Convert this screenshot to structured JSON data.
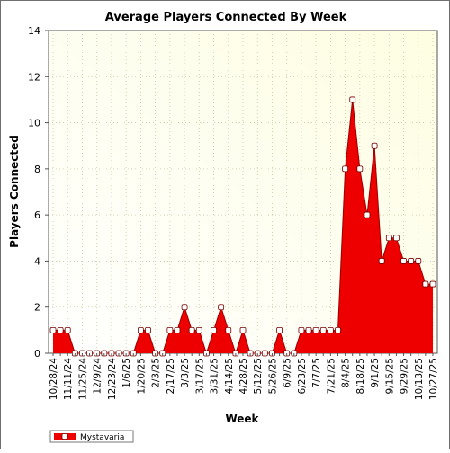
{
  "chart_data": {
    "type": "area",
    "title": "Average Players Connected By Week",
    "xlabel": "Week",
    "ylabel": "Players Connected",
    "ylim": [
      0,
      14
    ],
    "yticks": [
      0,
      2,
      4,
      6,
      8,
      10,
      12,
      14
    ],
    "grid": true,
    "legend_position": "bottom-left",
    "colors": {
      "fill": "#ee0000",
      "line": "#990000",
      "marker_fill": "#ffffff",
      "plot_bg_top": "#fefee2",
      "plot_bg_bottom": "#ffffff",
      "grid": "#c8c8a8"
    },
    "x": [
      "10/28/24",
      "11/4/24",
      "11/11/24",
      "11/18/24",
      "11/25/24",
      "12/2/24",
      "12/9/24",
      "12/16/24",
      "12/23/24",
      "12/30/24",
      "1/6/25",
      "1/13/25",
      "1/20/25",
      "1/27/25",
      "2/3/25",
      "2/10/25",
      "2/17/25",
      "2/24/25",
      "3/3/25",
      "3/10/25",
      "3/17/25",
      "3/24/25",
      "3/31/25",
      "4/7/25",
      "4/14/25",
      "4/21/25",
      "4/28/25",
      "5/5/25",
      "5/12/25",
      "5/19/25",
      "5/26/25",
      "6/2/25",
      "6/9/25",
      "6/16/25",
      "6/23/25",
      "6/30/25",
      "7/7/25",
      "7/14/25",
      "7/21/25",
      "7/28/25",
      "8/4/25",
      "8/11/25",
      "8/18/25",
      "8/25/25",
      "9/1/25",
      "9/8/25",
      "9/15/25",
      "9/22/25",
      "9/29/25",
      "10/6/25",
      "10/13/25",
      "10/20/25",
      "10/27/25"
    ],
    "tick_labels": [
      "10/28/24",
      "11/11/24",
      "11/25/24",
      "12/9/24",
      "12/23/24",
      "1/6/25",
      "1/20/25",
      "2/3/25",
      "2/17/25",
      "3/3/25",
      "3/17/25",
      "3/31/25",
      "4/14/25",
      "4/28/25",
      "5/12/25",
      "5/26/25",
      "6/9/25",
      "6/23/25",
      "7/7/25",
      "7/21/25",
      "8/4/25",
      "8/18/25",
      "9/1/25",
      "9/15/25",
      "9/29/25",
      "10/13/25",
      "10/27/25"
    ],
    "series": [
      {
        "name": "Mystavaria",
        "values": [
          1,
          1,
          1,
          0,
          0,
          0,
          0,
          0,
          0,
          0,
          0,
          0,
          1,
          1,
          0,
          0,
          1,
          1,
          2,
          1,
          1,
          0,
          1,
          2,
          1,
          0,
          1,
          0,
          0,
          0,
          0,
          1,
          0,
          0,
          1,
          1,
          1,
          1,
          1,
          1,
          8,
          11,
          8,
          6,
          9,
          4,
          5,
          5,
          4,
          4,
          4,
          3,
          3
        ]
      }
    ]
  }
}
